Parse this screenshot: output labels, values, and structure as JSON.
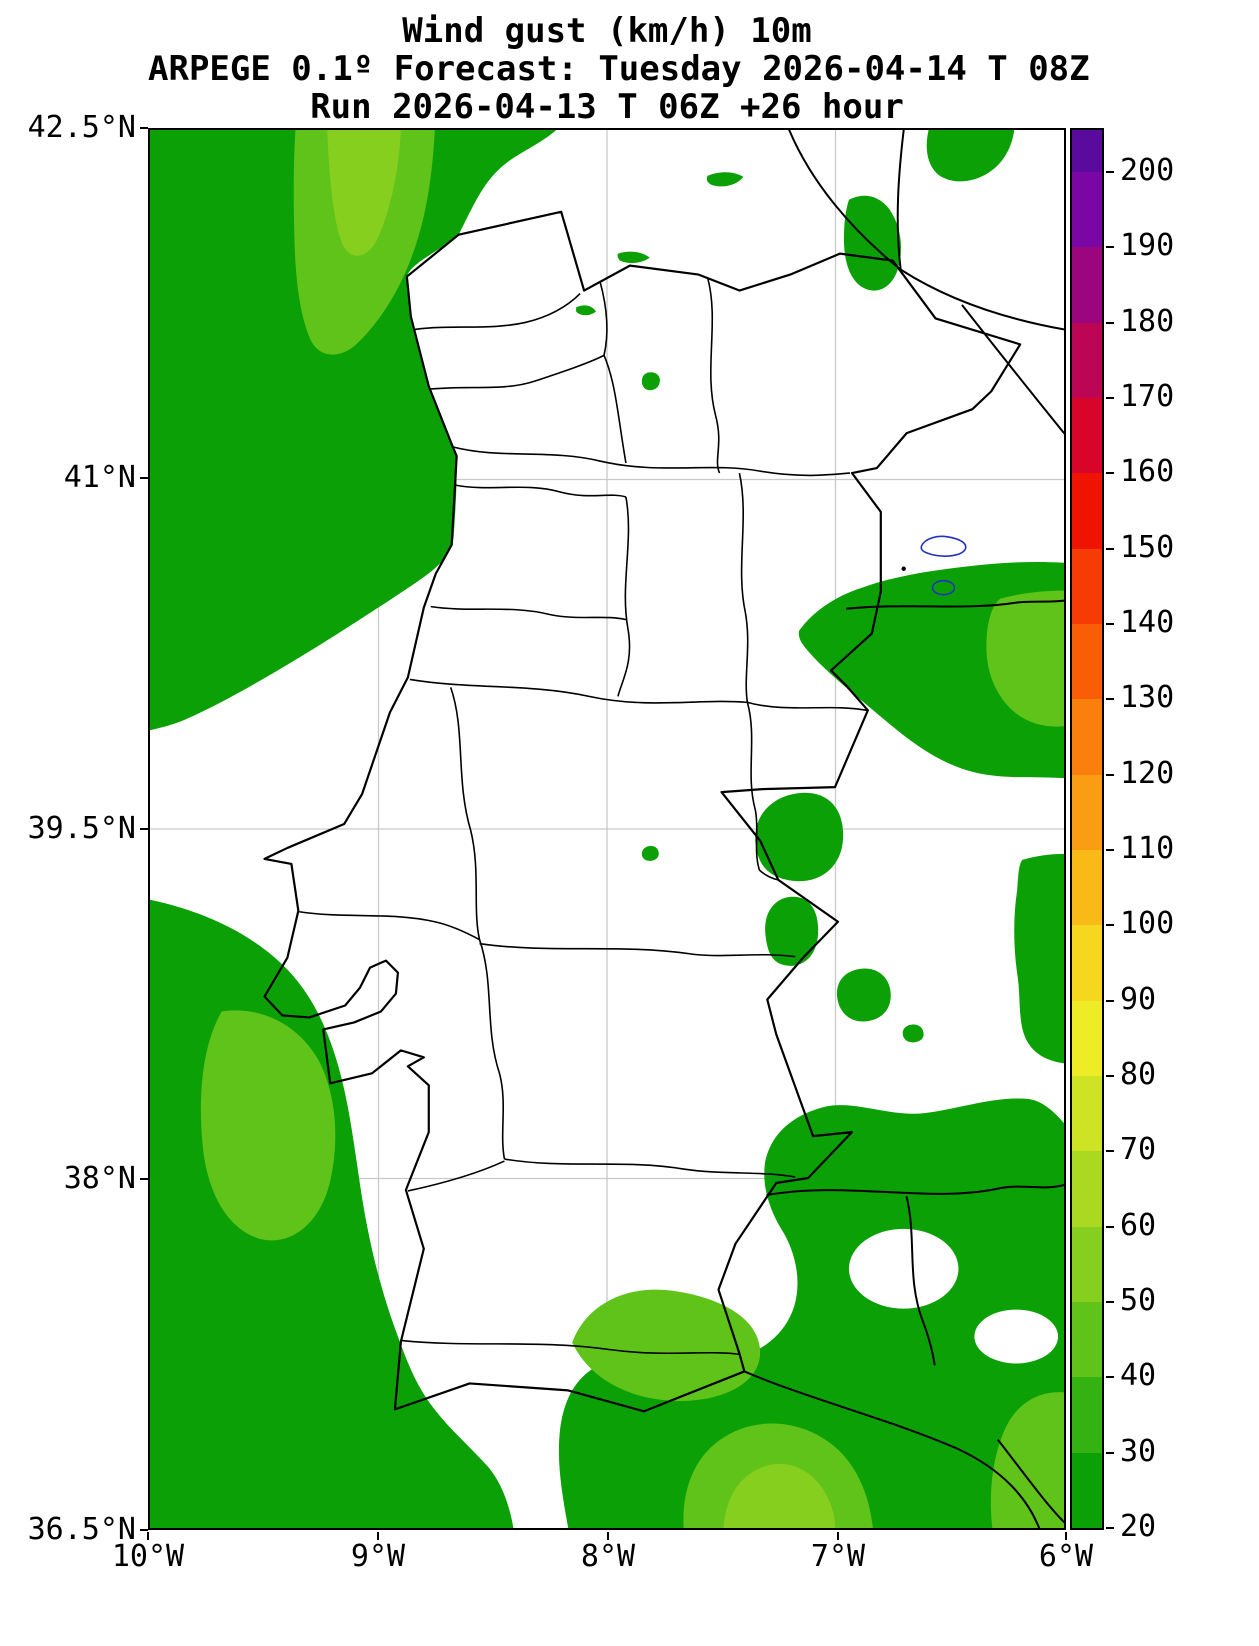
{
  "title": {
    "line1": "Wind gust (km/h) 10m",
    "line2": "ARPEGE 0.1º Forecast: Tuesday 2026-04-14 T 08Z",
    "line3": "Run 2026-04-13 T 06Z +26 hour"
  },
  "axes": {
    "y_ticks": [
      "42.5°N",
      "41°N",
      "39.5°N",
      "38°N",
      "36.5°N"
    ],
    "x_ticks": [
      "10°W",
      "9°W",
      "8°W",
      "7°W",
      "6°W"
    ]
  },
  "colorbar": {
    "min": 20,
    "max": 200,
    "tick_values": [
      20,
      30,
      40,
      50,
      60,
      70,
      80,
      90,
      100,
      110,
      120,
      130,
      140,
      150,
      160,
      170,
      180,
      190,
      200
    ],
    "levels": [
      {
        "from": 20,
        "to": 30,
        "color": "#0ba005"
      },
      {
        "from": 30,
        "to": 40,
        "color": "#33b212"
      },
      {
        "from": 40,
        "to": 50,
        "color": "#5fc31a"
      },
      {
        "from": 50,
        "to": 60,
        "color": "#86cf1e"
      },
      {
        "from": 60,
        "to": 70,
        "color": "#abd921"
      },
      {
        "from": 70,
        "to": 80,
        "color": "#cde324"
      },
      {
        "from": 80,
        "to": 90,
        "color": "#edec26"
      },
      {
        "from": 90,
        "to": 100,
        "color": "#f6d71f"
      },
      {
        "from": 100,
        "to": 110,
        "color": "#f9ba18"
      },
      {
        "from": 110,
        "to": 120,
        "color": "#fa9d12"
      },
      {
        "from": 120,
        "to": 130,
        "color": "#fa7f0c"
      },
      {
        "from": 130,
        "to": 140,
        "color": "#f95e07"
      },
      {
        "from": 140,
        "to": 150,
        "color": "#f63b04"
      },
      {
        "from": 150,
        "to": 160,
        "color": "#ef1402"
      },
      {
        "from": 160,
        "to": 170,
        "color": "#d90429"
      },
      {
        "from": 170,
        "to": 180,
        "color": "#bc0555"
      },
      {
        "from": 180,
        "to": 190,
        "color": "#9b067f"
      },
      {
        "from": 190,
        "to": 200,
        "color": "#7a07a4"
      }
    ],
    "over_color": "#5a0a9c"
  },
  "palette": {
    "background": "#ffffff",
    "line_color": "#000000",
    "grid_color": "#c9c9c9",
    "blue_contour": "#2233bb",
    "green_20": "#0ba005",
    "green_30": "#33b212",
    "green_40": "#5fc31a",
    "green_50": "#86cf1e"
  },
  "map": {
    "variable": "Wind gust",
    "unit": "km/h",
    "height_level": "10m",
    "model": "ARPEGE 0.1º",
    "valid_time": "Tuesday 2026-04-14 T 08Z",
    "run_time": "2026-04-13 T 06Z",
    "lead_time": "+26 hour",
    "extent": {
      "west": "10°W",
      "east": "6°W",
      "south": "36.5°N",
      "north": "42.5°N"
    }
  }
}
